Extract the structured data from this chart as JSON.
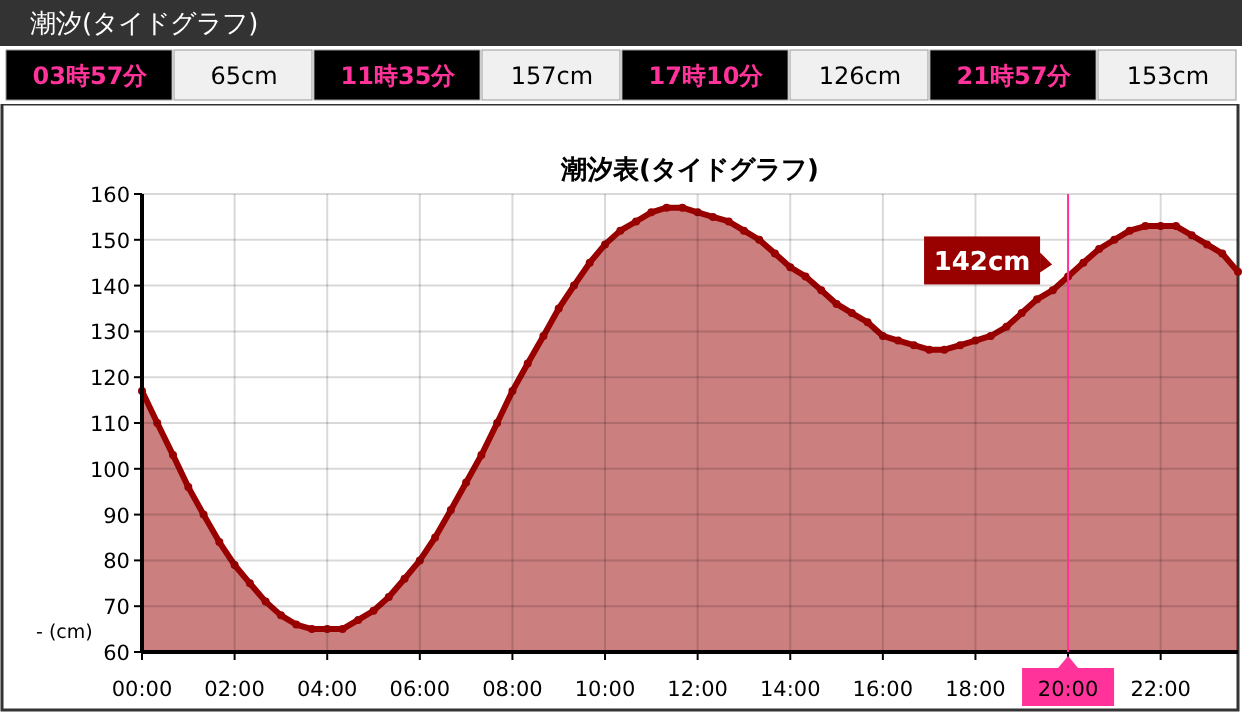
{
  "chart_data": {
    "type": "area",
    "title": "潮汐表(タイドグラフ)",
    "ylabel": "- (cm)",
    "x": [
      0,
      0.33,
      0.67,
      1,
      1.33,
      1.67,
      2,
      2.33,
      2.67,
      3,
      3.33,
      3.67,
      4,
      4.33,
      4.67,
      5,
      5.33,
      5.67,
      6,
      6.33,
      6.67,
      7,
      7.33,
      7.67,
      8,
      8.33,
      8.67,
      9,
      9.33,
      9.67,
      10,
      10.33,
      10.67,
      11,
      11.33,
      11.67,
      12,
      12.33,
      12.67,
      13,
      13.33,
      13.67,
      14,
      14.33,
      14.67,
      15,
      15.33,
      15.67,
      16,
      16.33,
      16.67,
      17,
      17.33,
      17.67,
      18,
      18.33,
      18.67,
      19,
      19.33,
      19.67,
      20,
      20.33,
      20.67,
      21,
      21.33,
      21.67,
      22,
      22.33,
      22.67,
      23,
      23.33,
      23.67
    ],
    "series": [
      {
        "color": "#990000",
        "values": [
          117,
          110,
          103,
          96,
          90,
          84,
          79,
          75,
          71,
          68,
          66,
          65,
          65,
          65,
          67,
          69,
          72,
          76,
          80,
          85,
          91,
          97,
          103,
          110,
          117,
          123,
          129,
          135,
          140,
          145,
          149,
          152,
          154,
          156,
          157,
          157,
          156,
          155,
          154,
          152,
          150,
          147,
          144,
          142,
          139,
          136,
          134,
          132,
          129,
          128,
          127,
          126,
          126,
          127,
          128,
          129,
          131,
          134,
          137,
          139,
          142,
          145,
          148,
          150,
          152,
          153,
          153,
          153,
          151,
          149,
          147,
          143
        ]
      }
    ],
    "xlim": [
      0,
      23.67
    ],
    "ylim": [
      60,
      160
    ],
    "xticks": [
      {
        "value": 0,
        "label": "00:00"
      },
      {
        "value": 2,
        "label": "02:00"
      },
      {
        "value": 4,
        "label": "04:00"
      },
      {
        "value": 6,
        "label": "06:00"
      },
      {
        "value": 8,
        "label": "08:00"
      },
      {
        "value": 10,
        "label": "10:00"
      },
      {
        "value": 12,
        "label": "12:00"
      },
      {
        "value": 14,
        "label": "14:00"
      },
      {
        "value": 16,
        "label": "16:00"
      },
      {
        "value": 18,
        "label": "18:00"
      },
      {
        "value": 20,
        "label": null
      },
      {
        "value": 22,
        "label": "22:00"
      }
    ],
    "yticks": [
      60,
      70,
      80,
      90,
      100,
      110,
      120,
      130,
      140,
      150,
      160
    ],
    "grid": true,
    "marker": "circle",
    "ref_lines": [
      {
        "axis": "x",
        "value": 20,
        "label": "20:00",
        "color": "#ff3399"
      }
    ],
    "annotations": [
      "潮汐(タイドグラフ)",
      "03時57分",
      "65cm",
      "11時35分",
      "157cm",
      "17時10分",
      "126cm",
      "21時57分",
      "153cm",
      {
        "text": "142cm",
        "x": 20,
        "y": 142
      }
    ]
  }
}
